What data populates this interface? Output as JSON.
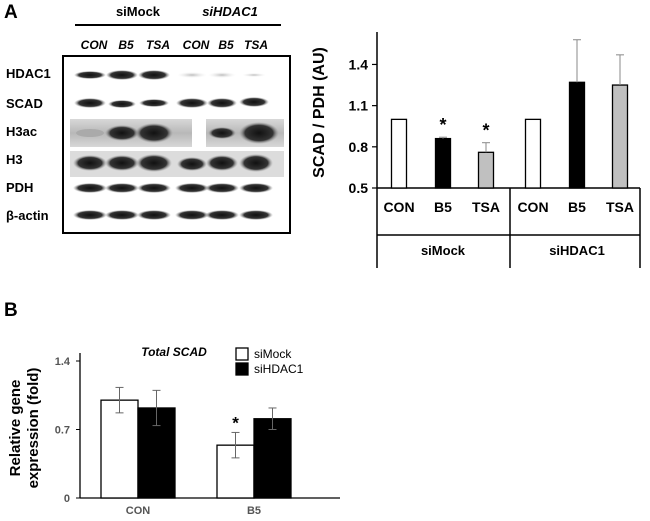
{
  "panel_a": {
    "letter": "A",
    "western_blot": {
      "groups": [
        "siMock",
        "siHDAC1"
      ],
      "lanes": [
        "CON",
        "B5",
        "TSA",
        "CON",
        "B5",
        "TSA"
      ],
      "rows": [
        "HDAC1",
        "SCAD",
        "H3ac",
        "H3",
        "PDH",
        "β-actin"
      ]
    }
  },
  "panel_b": {
    "letter": "B"
  },
  "chart_data": [
    {
      "type": "bar",
      "title": "",
      "xlabel": "",
      "ylabel": "SCAD / PDH (AU)",
      "ylim": [
        0.5,
        1.6
      ],
      "yticks": [
        "0.5",
        "0.8",
        "1.1",
        "1.4"
      ],
      "groups": [
        {
          "name": "siMock",
          "categories": [
            "CON",
            "B5",
            "TSA"
          ]
        },
        {
          "name": "siHDAC1",
          "categories": [
            "CON",
            "B5",
            "TSA"
          ]
        }
      ],
      "bars": [
        {
          "group": "siMock",
          "category": "CON",
          "value": 1.0,
          "error": 0,
          "color": "#ffffff",
          "sig": ""
        },
        {
          "group": "siMock",
          "category": "B5",
          "value": 0.86,
          "error": 0.01,
          "color": "#000000",
          "sig": "*"
        },
        {
          "group": "siMock",
          "category": "TSA",
          "value": 0.76,
          "error": 0.07,
          "color": "#c0c0c0",
          "sig": "*"
        },
        {
          "group": "siHDAC1",
          "category": "CON",
          "value": 1.0,
          "error": 0,
          "color": "#ffffff",
          "sig": ""
        },
        {
          "group": "siHDAC1",
          "category": "B5",
          "value": 1.27,
          "error": 0.31,
          "color": "#000000",
          "sig": ""
        },
        {
          "group": "siHDAC1",
          "category": "TSA",
          "value": 1.25,
          "error": 0.22,
          "color": "#c0c0c0",
          "sig": ""
        }
      ]
    },
    {
      "type": "bar",
      "title": "Total SCAD",
      "xlabel": "",
      "ylabel": "Relative gene expression (fold)",
      "ylabel_lines": [
        "Relative gene",
        "expression (fold)"
      ],
      "ylim": [
        0,
        1.4
      ],
      "yticks": [
        "0",
        "0.7",
        "1.4"
      ],
      "categories": [
        "CON",
        "B5"
      ],
      "legend": "top-center",
      "series": [
        {
          "name": "siMock",
          "color": "#ffffff",
          "values": [
            1.0,
            0.54
          ],
          "errors": [
            0.13,
            0.13
          ],
          "sig": [
            "",
            "*"
          ]
        },
        {
          "name": "siHDAC1",
          "color": "#000000",
          "values": [
            0.92,
            0.81
          ],
          "errors": [
            0.18,
            0.11
          ],
          "sig": [
            "",
            ""
          ]
        }
      ]
    }
  ]
}
